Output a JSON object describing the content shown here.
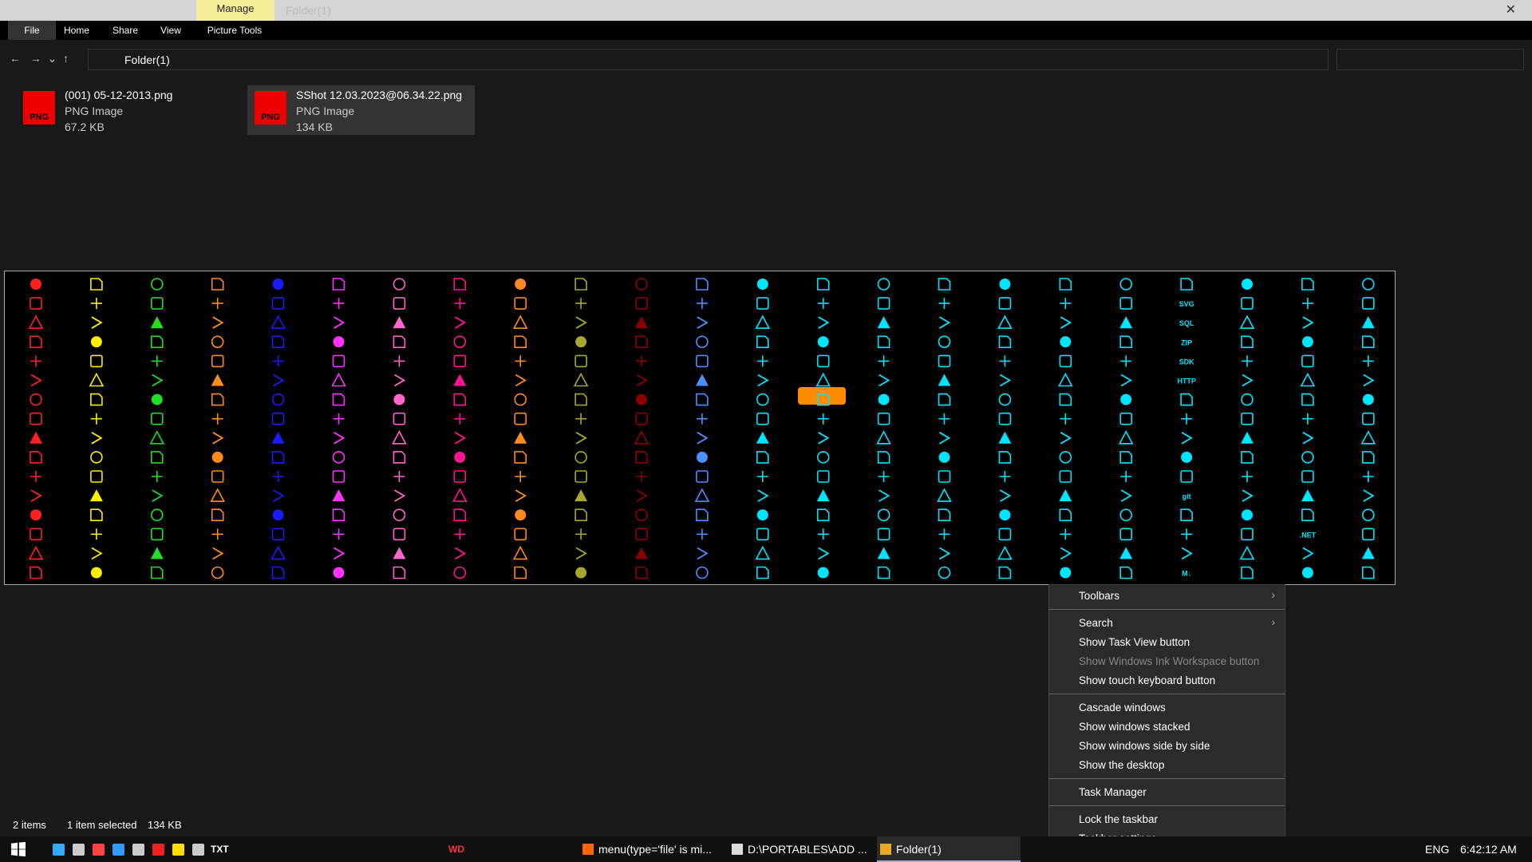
{
  "titlebar": {
    "context_tab": "Manage",
    "window_title": "Folder(1)"
  },
  "ribbon": {
    "tabs": [
      "File",
      "Home",
      "Share",
      "View",
      "Picture Tools"
    ]
  },
  "address": {
    "path": "Folder(1)"
  },
  "files": [
    {
      "name": "(001) 05-12-2013.png",
      "type": "PNG Image",
      "size": "67.2 KB",
      "icon": "PNG"
    },
    {
      "name": "SShot 12.03.2023@06.34.22.png",
      "type": "PNG Image",
      "size": "134 KB",
      "icon": "PNG"
    }
  ],
  "icon_labels": [
    {
      "col": 19,
      "row": 1,
      "text": "SVG"
    },
    {
      "col": 19,
      "row": 2,
      "text": "SQL"
    },
    {
      "col": 19,
      "row": 3,
      "text": "ZIP"
    },
    {
      "col": 19,
      "row": 4,
      "text": "SDK"
    },
    {
      "col": 19,
      "row": 5,
      "text": "HTTP"
    },
    {
      "col": 19,
      "row": 11,
      "text": "git"
    },
    {
      "col": 21,
      "row": 13,
      "text": ".NET"
    },
    {
      "col": 19,
      "row": 15,
      "text": "M↓"
    }
  ],
  "context_menu": {
    "groups": [
      [
        {
          "text": "Toolbars",
          "submenu": true
        }
      ],
      [
        {
          "text": "Search",
          "submenu": true
        },
        {
          "text": "Show Task View button"
        },
        {
          "text": "Show Windows Ink Workspace button",
          "disabled": true
        },
        {
          "text": "Show touch keyboard button"
        }
      ],
      [
        {
          "text": "Cascade windows"
        },
        {
          "text": "Show windows stacked"
        },
        {
          "text": "Show windows side by side"
        },
        {
          "text": "Show the desktop"
        }
      ],
      [
        {
          "text": "Task Manager"
        }
      ],
      [
        {
          "text": "Lock the taskbar"
        },
        {
          "text": "Taskbar settings"
        }
      ]
    ]
  },
  "status": {
    "count": "2 items",
    "selected": "1 item selected",
    "size": "134 KB"
  },
  "taskbar": {
    "quick": [
      "TXT",
      "WD"
    ],
    "windows": [
      "menu(type='file' is mi...",
      "D:\\PORTABLES\\ADD ...",
      "Folder(1)"
    ],
    "lang": "ENG",
    "time": "6:42:12 AM"
  }
}
